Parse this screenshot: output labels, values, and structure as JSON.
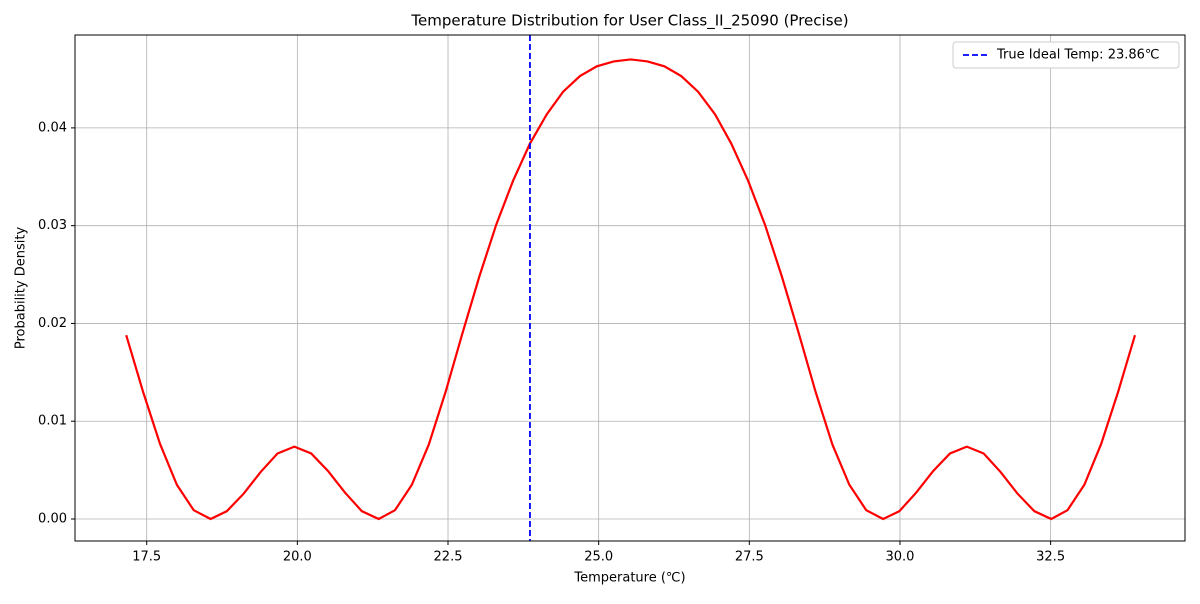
{
  "chart_data": {
    "type": "line",
    "title": "Temperature Distribution for User Class_II_25090 (Precise)",
    "x_label": "Temperature (℃)",
    "y_label": "Probability Density",
    "x": [
      17.16,
      17.44,
      17.72,
      18.0,
      18.28,
      18.56,
      18.83,
      19.11,
      19.39,
      19.67,
      19.95,
      20.23,
      20.51,
      20.79,
      21.07,
      21.35,
      21.62,
      21.9,
      22.18,
      22.46,
      22.74,
      23.02,
      23.3,
      23.58,
      23.86,
      24.14,
      24.41,
      24.69,
      24.97,
      25.25,
      25.53,
      25.81,
      26.09,
      26.37,
      26.65,
      26.93,
      27.2,
      27.48,
      27.76,
      28.04,
      28.32,
      28.6,
      28.88,
      29.16,
      29.44,
      29.72,
      29.99,
      30.27,
      30.55,
      30.83,
      31.11,
      31.39,
      31.67,
      31.95,
      32.23,
      32.51,
      32.78,
      33.06,
      33.34,
      33.62,
      33.9
    ],
    "series": [
      {
        "color": "#ff0000",
        "values": [
          0.0188,
          0.013,
          0.0077,
          0.0035,
          0.0009,
          0.0,
          0.0008,
          0.0026,
          0.0048,
          0.0067,
          0.0074,
          0.0067,
          0.0049,
          0.0027,
          0.0008,
          0.0,
          0.0009,
          0.0035,
          0.0076,
          0.013,
          0.019,
          0.0248,
          0.0301,
          0.0346,
          0.0384,
          0.0414,
          0.0437,
          0.0453,
          0.0463,
          0.0468,
          0.047,
          0.0468,
          0.0463,
          0.0453,
          0.0437,
          0.0414,
          0.0384,
          0.0346,
          0.0301,
          0.0248,
          0.019,
          0.013,
          0.0076,
          0.0035,
          0.0009,
          0.0,
          0.0008,
          0.0027,
          0.0049,
          0.0067,
          0.0074,
          0.0067,
          0.0048,
          0.0026,
          0.0008,
          0.0,
          0.0009,
          0.0035,
          0.0077,
          0.013,
          0.0188
        ]
      }
    ],
    "reference_line": {
      "name": "True Ideal Temp: 23.86℃",
      "value": 23.86,
      "color": "#0000ff"
    },
    "xlim": [
      16.31,
      34.73
    ],
    "xticks": [
      17.5,
      {
        "value": 20,
        "label": "20.0"
      },
      22.5,
      {
        "value": 25,
        "label": "25.0"
      },
      27.5,
      {
        "value": 30,
        "label": "30.0"
      },
      32.5
    ],
    "ylim": [
      -0.00225,
      0.0495
    ],
    "yticks": [
      {
        "value": 0,
        "label": "0.00"
      },
      0.01,
      0.02,
      0.03,
      0.04
    ],
    "grid": true,
    "legend": "upper right"
  }
}
